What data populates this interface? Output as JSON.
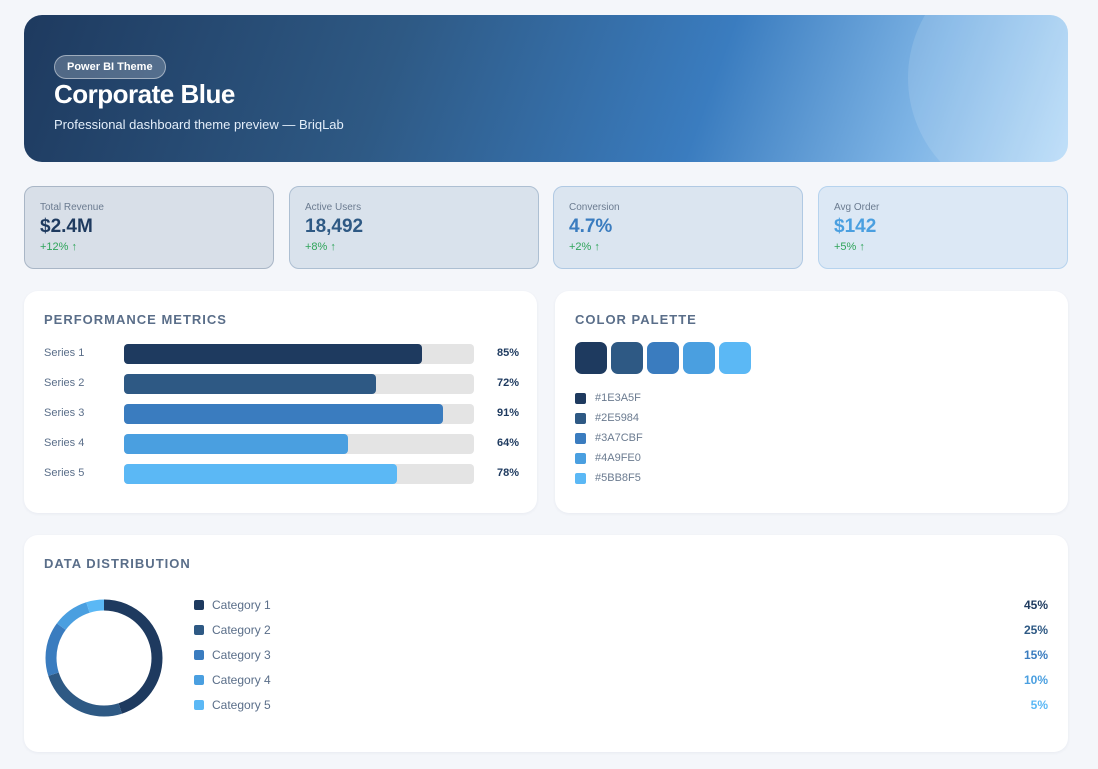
{
  "hero": {
    "badge": "Power BI Theme",
    "title": "Corporate Blue",
    "subtitle": "Professional dashboard theme preview — BriqLab"
  },
  "kpis": [
    {
      "label": "Total Revenue",
      "value": "$2.4M",
      "delta": "+12% ↑",
      "color": "#1E3A5F",
      "bg": "#d8dfe8",
      "border": "#a9b6c6"
    },
    {
      "label": "Active Users",
      "value": "18,492",
      "delta": "+8% ↑",
      "color": "#2E5984",
      "bg": "#d9e2ec",
      "border": "#adbfd2"
    },
    {
      "label": "Conversion",
      "value": "4.7%",
      "delta": "+2% ↑",
      "color": "#3A7CBF",
      "bg": "#dbe5f0",
      "border": "#b0c9e3"
    },
    {
      "label": "Avg Order",
      "value": "$142",
      "delta": "+5% ↑",
      "color": "#4A9FE0",
      "bg": "#dce8f5",
      "border": "#b6d3ee"
    }
  ],
  "performance": {
    "title": "PERFORMANCE METRICS",
    "items": [
      {
        "name": "Series 1",
        "value": 85,
        "label": "85%",
        "color": "#1E3A5F"
      },
      {
        "name": "Series 2",
        "value": 72,
        "label": "72%",
        "color": "#2E5984"
      },
      {
        "name": "Series 3",
        "value": 91,
        "label": "91%",
        "color": "#3A7CBF"
      },
      {
        "name": "Series 4",
        "value": 64,
        "label": "64%",
        "color": "#4A9FE0"
      },
      {
        "name": "Series 5",
        "value": 78,
        "label": "78%",
        "color": "#5BB8F5"
      }
    ]
  },
  "palette": {
    "title": "COLOR PALETTE",
    "colors": [
      "#1E3A5F",
      "#2E5984",
      "#3A7CBF",
      "#4A9FE0",
      "#5BB8F5"
    ],
    "labels": [
      "#1E3A5F",
      "#2E5984",
      "#3A7CBF",
      "#4A9FE0",
      "#5BB8F5"
    ]
  },
  "distribution": {
    "title": "DATA DISTRIBUTION",
    "items": [
      {
        "name": "Category 1",
        "value": 45,
        "label": "45%",
        "color": "#1E3A5F"
      },
      {
        "name": "Category 2",
        "value": 25,
        "label": "25%",
        "color": "#2E5984"
      },
      {
        "name": "Category 3",
        "value": 15,
        "label": "15%",
        "color": "#3A7CBF"
      },
      {
        "name": "Category 4",
        "value": 10,
        "label": "10%",
        "color": "#4A9FE0"
      },
      {
        "name": "Category 5",
        "value": 5,
        "label": "5%",
        "color": "#5BB8F5"
      }
    ]
  }
}
